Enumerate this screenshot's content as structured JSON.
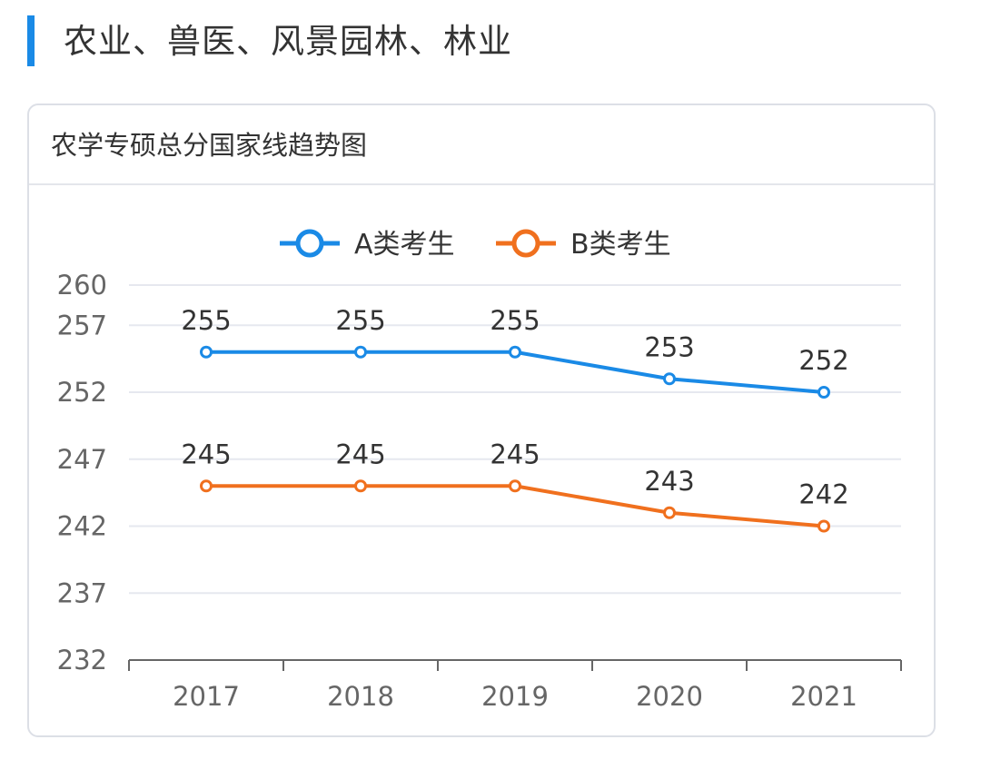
{
  "section": {
    "title": "农业、兽医、风景园林、林业"
  },
  "card": {
    "title": "农学专硕总分国家线趋势图"
  },
  "colors": {
    "accent": "#1a8ae6",
    "series_a": "#1a8ae6",
    "series_b": "#f0701e",
    "grid": "#e6e8ef",
    "axis": "#666666"
  },
  "chart_data": {
    "type": "line",
    "title": "农学专硕总分国家线趋势图",
    "xlabel": "",
    "ylabel": "",
    "categories": [
      "2017",
      "2018",
      "2019",
      "2020",
      "2021"
    ],
    "yticks": [
      232,
      237,
      242,
      247,
      252,
      257,
      260
    ],
    "ylim": [
      232,
      260
    ],
    "grid": true,
    "legend_position": "top-center",
    "series": [
      {
        "name": "A类考生",
        "color": "#1a8ae6",
        "values": [
          255,
          255,
          255,
          253,
          252
        ]
      },
      {
        "name": "B类考生",
        "color": "#f0701e",
        "values": [
          245,
          245,
          245,
          243,
          242
        ]
      }
    ]
  }
}
